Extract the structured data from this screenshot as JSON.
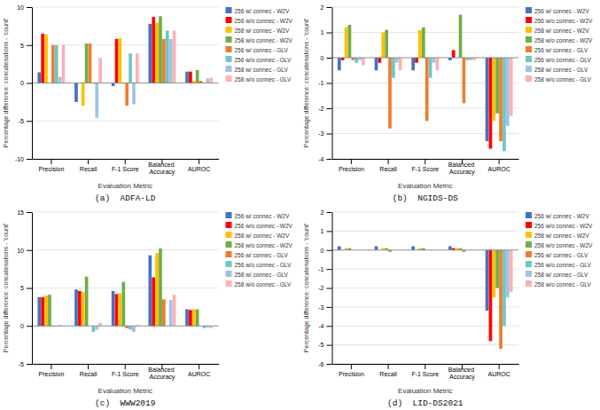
{
  "chart_data": [
    {
      "type": "bar",
      "title": "(a)  ADFA-LD",
      "xlabel": "Evaluation Metric",
      "ylabel": "Percentage difference: concatenations - 'count'",
      "categories": [
        "Precision",
        "Recall",
        "F-1 Score",
        "Balanced Accuracy",
        "AUROC"
      ],
      "series": [
        {
          "name": "256 w/ connec - W2V",
          "color": "#4472C4",
          "values": [
            1.4,
            -2.5,
            -0.4,
            7.8,
            1.5
          ]
        },
        {
          "name": "256 w/o connec - W2V",
          "color": "#FF0000",
          "values": [
            6.5,
            0.0,
            5.8,
            8.7,
            1.5
          ]
        },
        {
          "name": "258 w/ connec - W2V",
          "color": "#FFC000",
          "values": [
            6.4,
            -3.0,
            5.9,
            7.9,
            0.3
          ]
        },
        {
          "name": "258 w/o connec - W2V",
          "color": "#70AD47",
          "values": [
            0.0,
            5.2,
            -0.1,
            8.8,
            1.7
          ]
        },
        {
          "name": "256 w/ connec - GLV",
          "color": "#ED7D31",
          "values": [
            5.0,
            5.2,
            -3.0,
            5.8,
            0.3
          ]
        },
        {
          "name": "256 w/o connec - GLV",
          "color": "#6EC6C6",
          "values": [
            5.0,
            -0.1,
            3.9,
            6.9,
            0.0
          ]
        },
        {
          "name": "258 w/ connec - GLV",
          "color": "#9DC3E6",
          "values": [
            0.8,
            -4.6,
            -2.8,
            5.8,
            0.6
          ]
        },
        {
          "name": "258 w/o connec - GLV",
          "color": "#FFB0B0",
          "values": [
            5.0,
            3.3,
            3.9,
            6.9,
            0.7
          ]
        }
      ],
      "ylim": [
        -10,
        10
      ],
      "yticks": [
        -10,
        -5,
        0,
        5,
        10
      ],
      "grid": true,
      "legend": "right"
    },
    {
      "type": "bar",
      "title": "(b)  NGIDS-DS",
      "xlabel": "Evaluation Metric",
      "ylabel": "Percentage difference: concatenations - 'count'",
      "categories": [
        "Precision",
        "Recall",
        "F-1 Score",
        "Balanced Accuracy",
        "AUROC"
      ],
      "series": [
        {
          "name": "256 w/ connec - W2V",
          "color": "#4472C4",
          "values": [
            -0.5,
            -0.5,
            -0.5,
            -0.1,
            -3.3
          ]
        },
        {
          "name": "256 w/o connec - W2V",
          "color": "#FF0000",
          "values": [
            -0.1,
            -0.2,
            -0.2,
            0.3,
            -3.6
          ]
        },
        {
          "name": "258 w/ connec - W2V",
          "color": "#FFC000",
          "values": [
            1.2,
            1.0,
            1.1,
            0.0,
            -2.5
          ]
        },
        {
          "name": "258 w/o connec - W2V",
          "color": "#70AD47",
          "values": [
            1.3,
            1.1,
            1.2,
            1.7,
            -2.2
          ]
        },
        {
          "name": "256 w/ connec - GLV",
          "color": "#ED7D31",
          "values": [
            -0.1,
            -2.8,
            -2.5,
            -1.8,
            -3.3
          ]
        },
        {
          "name": "256 w/o connec - GLV",
          "color": "#6EC6C6",
          "values": [
            -0.2,
            -0.8,
            -0.8,
            -0.1,
            -3.7
          ]
        },
        {
          "name": "258 w/ connec - GLV",
          "color": "#9DC3E6",
          "values": [
            -0.1,
            -0.2,
            -0.2,
            -0.1,
            -2.7
          ]
        },
        {
          "name": "258 w/o connec - GLV",
          "color": "#FFB0B0",
          "values": [
            -0.3,
            -0.5,
            -0.5,
            -0.1,
            -2.3
          ]
        }
      ],
      "ylim": [
        -4,
        2
      ],
      "yticks": [
        -4,
        -3,
        -2,
        -1,
        0,
        1,
        2
      ],
      "grid": true,
      "legend": "right"
    },
    {
      "type": "bar",
      "title": "(c)  WWW2019",
      "xlabel": "Evaluation Metric",
      "ylabel": "Percentage difference: concatenations - 'count'",
      "categories": [
        "Precision",
        "Recall",
        "F-1 Score",
        "Balanced Accuracy",
        "AUROC"
      ],
      "series": [
        {
          "name": "256 w/ connec - W2V",
          "color": "#4472C4",
          "values": [
            3.8,
            4.8,
            4.6,
            9.3,
            2.2
          ]
        },
        {
          "name": "256 w/o connec - W2V",
          "color": "#FF0000",
          "values": [
            3.8,
            4.6,
            4.2,
            6.4,
            2.1
          ]
        },
        {
          "name": "258 w/ connec - W2V",
          "color": "#FFC000",
          "values": [
            4.0,
            4.5,
            4.3,
            9.6,
            2.2
          ]
        },
        {
          "name": "258 w/o connec - W2V",
          "color": "#70AD47",
          "values": [
            4.1,
            6.5,
            5.8,
            10.2,
            2.2
          ]
        },
        {
          "name": "256 w/ connec - GLV",
          "color": "#ED7D31",
          "values": [
            -0.1,
            0.0,
            -0.3,
            3.5,
            0.0
          ]
        },
        {
          "name": "256 w/o connec - GLV",
          "color": "#6EC6C6",
          "values": [
            0.0,
            -0.8,
            -0.5,
            0.0,
            -0.3
          ]
        },
        {
          "name": "258 w/ connec - GLV",
          "color": "#9DC3E6",
          "values": [
            0.1,
            -0.5,
            -0.8,
            3.4,
            -0.2
          ]
        },
        {
          "name": "258 w/o connec - GLV",
          "color": "#FFB0B0",
          "values": [
            0.0,
            0.4,
            0.1,
            4.1,
            -0.3
          ]
        }
      ],
      "ylim": [
        -5,
        15
      ],
      "yticks": [
        -5,
        0,
        5,
        10,
        15
      ],
      "grid": true,
      "legend": "right"
    },
    {
      "type": "bar",
      "title": "(d)  LID-DS2021",
      "xlabel": "Evaluation Metric",
      "ylabel": "Percentage difference: concatenations - 'count'",
      "categories": [
        "Precision",
        "Recall",
        "F-1 Score",
        "Balanced Accuracy",
        "AUROC"
      ],
      "series": [
        {
          "name": "256 w/ connec - W2V",
          "color": "#4472C4",
          "values": [
            0.2,
            0.2,
            0.2,
            0.2,
            -3.2
          ]
        },
        {
          "name": "256 w/o connec - W2V",
          "color": "#FF0000",
          "values": [
            0.0,
            0.0,
            0.0,
            0.1,
            -4.8
          ]
        },
        {
          "name": "258 w/ connec - W2V",
          "color": "#FFC000",
          "values": [
            0.1,
            0.1,
            0.1,
            0.1,
            -2.5
          ]
        },
        {
          "name": "258 w/o connec - W2V",
          "color": "#70AD47",
          "values": [
            0.1,
            0.1,
            0.1,
            0.1,
            -2.0
          ]
        },
        {
          "name": "256 w/ connec - GLV",
          "color": "#ED7D31",
          "values": [
            0.0,
            -0.1,
            0.0,
            -0.1,
            -5.2
          ]
        },
        {
          "name": "256 w/o connec - GLV",
          "color": "#6EC6C6",
          "values": [
            0.0,
            0.0,
            0.0,
            0.0,
            -4.0
          ]
        },
        {
          "name": "258 w/ connec - GLV",
          "color": "#9DC3E6",
          "values": [
            0.0,
            0.0,
            0.0,
            0.0,
            -2.5
          ]
        },
        {
          "name": "258 w/o connec - GLV",
          "color": "#FFB0B0",
          "values": [
            0.0,
            0.0,
            0.0,
            0.0,
            -2.2
          ]
        }
      ],
      "ylim": [
        -6,
        2
      ],
      "yticks": [
        -6,
        -5,
        -4,
        -3,
        -2,
        -1,
        0,
        1,
        2
      ],
      "grid": true,
      "legend": "right"
    }
  ]
}
